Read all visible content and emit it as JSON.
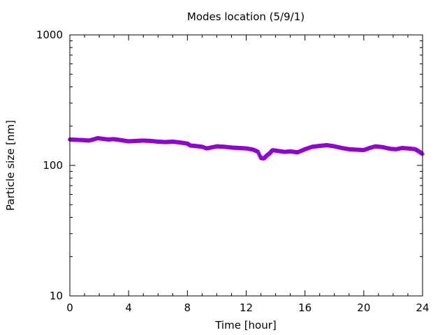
{
  "chart_data": {
    "type": "scatter",
    "title": "Modes location (5/9/1)",
    "xlabel": "Time [hour]",
    "ylabel": "Particle size [nm]",
    "xlim": [
      0,
      24
    ],
    "ylim": [
      10,
      1000
    ],
    "yscale": "log",
    "grid": false,
    "x_ticks": [
      0,
      4,
      8,
      12,
      16,
      20,
      24
    ],
    "x_tick_labels": [
      "0",
      "4",
      "8",
      "12",
      "16",
      "20",
      "24"
    ],
    "y_ticks": [
      10,
      100,
      1000
    ],
    "y_tick_labels": [
      "10",
      "100",
      "1000"
    ],
    "series_color": "#9400d3",
    "series": [
      {
        "x": [
          0,
          0.5,
          1,
          1.3,
          1.6,
          1.9,
          2.2,
          2.6,
          3.0,
          3.5,
          4.0,
          4.5,
          5.0,
          5.5,
          6.0,
          6.5,
          7.0,
          7.5,
          8.0,
          8.2,
          8.5,
          9.0,
          9.3,
          9.6,
          10.0,
          10.5,
          11.0,
          11.5,
          12.0,
          12.5,
          12.8,
          13.0,
          13.2,
          13.4,
          13.6,
          13.8,
          14.2,
          14.6,
          15.0,
          15.5,
          16.0,
          16.5,
          17.0,
          17.5,
          18.0,
          18.5,
          19.0,
          19.5,
          20.0,
          20.4,
          20.8,
          21.3,
          21.8,
          22.2,
          22.6,
          23.0,
          23.5,
          23.8,
          24.0
        ],
        "y": [
          158,
          157,
          156,
          155,
          158,
          162,
          160,
          158,
          159,
          156,
          153,
          154,
          155,
          154,
          152,
          151,
          152,
          150,
          147,
          142,
          141,
          139,
          135,
          137,
          140,
          139,
          137,
          136,
          135,
          132,
          127,
          114,
          113,
          119,
          124,
          131,
          129,
          127,
          128,
          126,
          133,
          139,
          141,
          143,
          140,
          136,
          133,
          132,
          131,
          136,
          140,
          138,
          134,
          133,
          136,
          135,
          133,
          127,
          122
        ]
      }
    ]
  }
}
